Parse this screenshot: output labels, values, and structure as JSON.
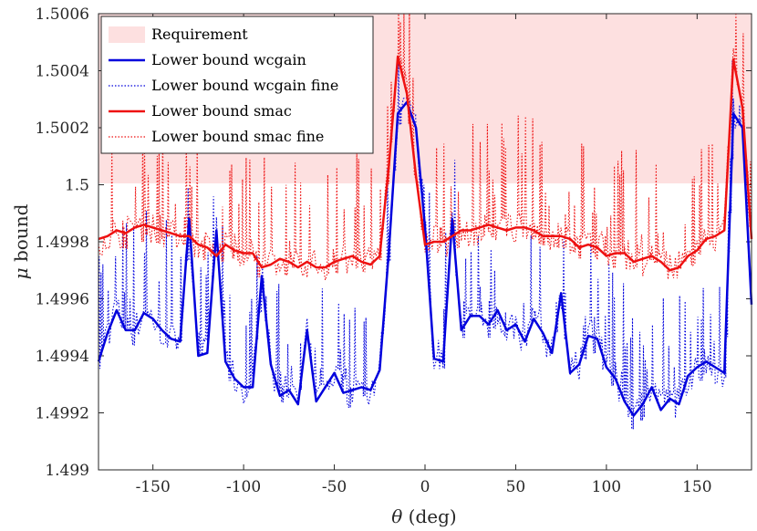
{
  "chart_data": {
    "type": "line",
    "xlabel_symbol": "θ",
    "xlabel_unit": "(deg)",
    "ylabel_symbol": "μ",
    "ylabel_unit": "bound",
    "xlim": [
      -180,
      180
    ],
    "ylim": [
      1.499,
      1.5006
    ],
    "xticks": [
      -150,
      -100,
      -50,
      0,
      50,
      100,
      150
    ],
    "xtick_labels": [
      "-150",
      "-100",
      "-50",
      "0",
      "50",
      "100",
      "150"
    ],
    "yticks": [
      1.499,
      1.4992,
      1.4994,
      1.4996,
      1.4998,
      1.5,
      1.5002,
      1.5004,
      1.5006
    ],
    "ytick_labels": [
      "1.499",
      "1.4992",
      "1.4994",
      "1.4996",
      "1.4998",
      "1.5",
      "1.5002",
      "1.5004",
      "1.5006"
    ],
    "requirement_band": {
      "label": "Requirement",
      "range": [
        1.5,
        1.5006
      ],
      "color": "#fde0e0"
    },
    "legend": [
      "Requirement",
      "Lower bound wcgain",
      "Lower bound wcgain fine",
      "Lower bound smac",
      "Lower bound smac fine"
    ],
    "x": [
      -180,
      -175,
      -170,
      -165,
      -160,
      -155,
      -150,
      -145,
      -140,
      -135,
      -130,
      -125,
      -120,
      -115,
      -110,
      -105,
      -100,
      -95,
      -90,
      -85,
      -80,
      -75,
      -70,
      -65,
      -60,
      -55,
      -50,
      -45,
      -40,
      -35,
      -30,
      -25,
      -20,
      -15,
      -10,
      -5,
      0,
      5,
      10,
      15,
      20,
      25,
      30,
      35,
      40,
      45,
      50,
      55,
      60,
      65,
      70,
      75,
      80,
      85,
      90,
      95,
      100,
      105,
      110,
      115,
      120,
      125,
      130,
      135,
      140,
      145,
      150,
      155,
      160,
      165,
      170,
      175,
      180
    ],
    "series": [
      {
        "name": "Lower bound wcgain",
        "style": "solid",
        "color": "#0000dd",
        "values": [
          1.49938,
          1.49948,
          1.49956,
          1.49949,
          1.49949,
          1.49955,
          1.49953,
          1.49949,
          1.49946,
          1.49945,
          1.49988,
          1.4994,
          1.49941,
          1.49984,
          1.49938,
          1.49932,
          1.49929,
          1.49929,
          1.49968,
          1.49937,
          1.49926,
          1.49928,
          1.49923,
          1.49949,
          1.49924,
          1.49929,
          1.49934,
          1.49927,
          1.49928,
          1.49929,
          1.49928,
          1.49935,
          1.49976,
          1.50025,
          1.50029,
          1.5002,
          1.49985,
          1.49939,
          1.49938,
          1.49988,
          1.49949,
          1.49954,
          1.49954,
          1.49951,
          1.49956,
          1.49949,
          1.49951,
          1.49945,
          1.49953,
          1.49948,
          1.49941,
          1.49962,
          1.49934,
          1.49937,
          1.49947,
          1.49946,
          1.49936,
          1.49932,
          1.49924,
          1.49919,
          1.49923,
          1.49929,
          1.49921,
          1.49925,
          1.49923,
          1.49933,
          1.49936,
          1.49938,
          1.49936,
          1.49934,
          1.50025,
          1.5002,
          1.49958
        ]
      },
      {
        "name": "Lower bound wcgain fine",
        "style": "dotted",
        "color": "#0000dd"
      },
      {
        "name": "Lower bound smac",
        "style": "solid",
        "color": "#ee1111",
        "values": [
          1.49981,
          1.49982,
          1.49984,
          1.49983,
          1.49985,
          1.49986,
          1.49985,
          1.49984,
          1.49983,
          1.49982,
          1.49982,
          1.49979,
          1.49978,
          1.49975,
          1.49979,
          1.49977,
          1.49976,
          1.49976,
          1.49971,
          1.49972,
          1.49974,
          1.49973,
          1.49971,
          1.49973,
          1.49971,
          1.49971,
          1.49973,
          1.49974,
          1.49975,
          1.49973,
          1.49972,
          1.49975,
          1.50006,
          1.50045,
          1.50032,
          1.50003,
          1.49979,
          1.4998,
          1.4998,
          1.49982,
          1.49984,
          1.49984,
          1.49985,
          1.49986,
          1.49985,
          1.49984,
          1.49985,
          1.49985,
          1.49984,
          1.49982,
          1.49982,
          1.49982,
          1.49981,
          1.49978,
          1.49979,
          1.49978,
          1.49975,
          1.49976,
          1.49976,
          1.49973,
          1.49974,
          1.49975,
          1.49973,
          1.4997,
          1.49971,
          1.49975,
          1.49977,
          1.49981,
          1.49982,
          1.49984,
          1.50044,
          1.50027,
          1.49981
        ]
      },
      {
        "name": "Lower bound smac fine",
        "style": "dotted",
        "color": "#ee1111"
      }
    ]
  }
}
